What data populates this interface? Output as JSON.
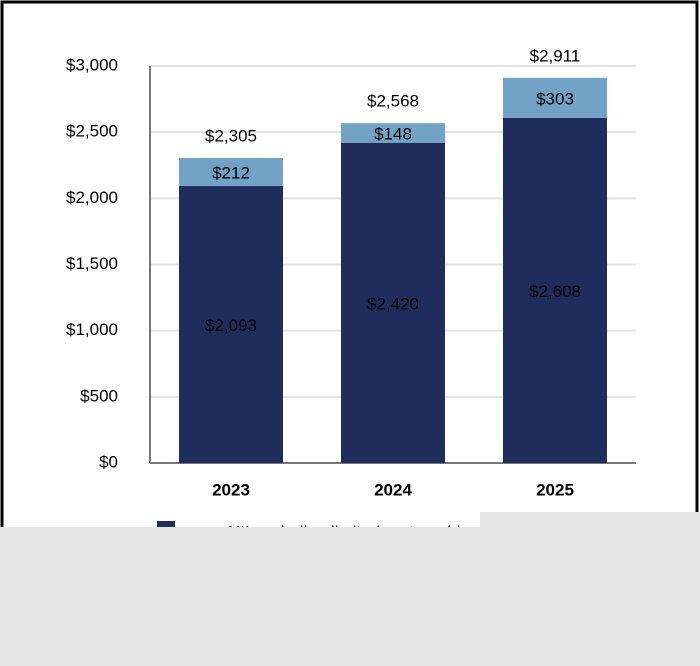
{
  "chart_data": {
    "type": "stacked-bar",
    "categories": [
      "2023",
      "2024",
      "2025"
    ],
    "series": [
      {
        "name": "NII excluding limited partnership",
        "color": "#1f2d5c",
        "values": [
          2093,
          2420,
          2608
        ],
        "value_labels": [
          "$2,093",
          "$2,420",
          "$2,608"
        ]
      },
      {
        "color": "#72a2c6",
        "values": [
          212,
          148,
          303
        ],
        "value_labels": [
          "$212",
          "$148",
          "$303"
        ]
      }
    ],
    "totals": [
      2305,
      2568,
      2911
    ],
    "total_labels": [
      "$2,305",
      "$2,568",
      "$2,911"
    ],
    "ylim": [
      0,
      3000
    ],
    "yticks": [
      {
        "value": 0,
        "label": "$0"
      },
      {
        "value": 500,
        "label": "$500"
      },
      {
        "value": 1000,
        "label": "$1,000"
      },
      {
        "value": 1500,
        "label": "$1,500"
      },
      {
        "value": 2000,
        "label": "$2,000"
      },
      {
        "value": 2500,
        "label": "$2,500"
      },
      {
        "value": 3000,
        "label": "$3,000"
      }
    ],
    "grid": true
  }
}
